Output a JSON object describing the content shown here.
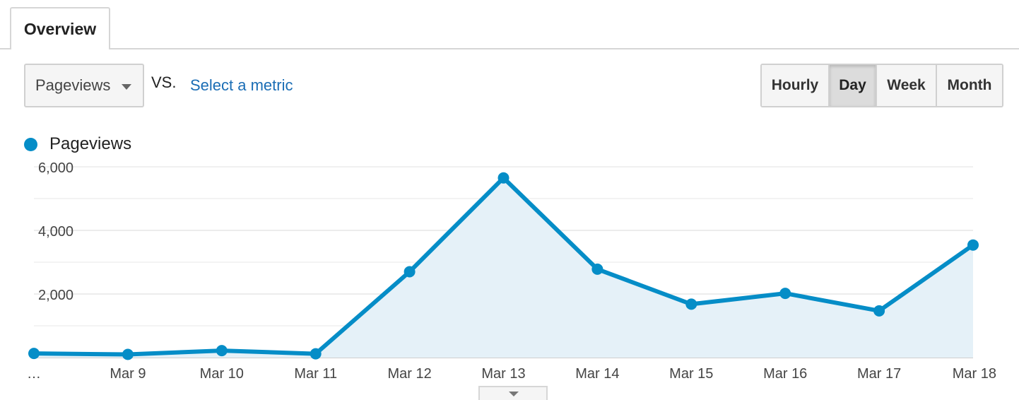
{
  "tabs": {
    "overview": "Overview"
  },
  "metric_selector": {
    "selected": "Pageviews",
    "vs": "VS.",
    "select_metric": "Select a metric"
  },
  "granularity": {
    "hourly": "Hourly",
    "day": "Day",
    "week": "Week",
    "month": "Month",
    "active": "Day"
  },
  "legend": {
    "series": "Pageviews",
    "color": "#058dc7"
  },
  "chart_data": {
    "type": "area",
    "x": [
      "…",
      "Mar 9",
      "Mar 10",
      "Mar 11",
      "Mar 12",
      "Mar 13",
      "Mar 14",
      "Mar 15",
      "Mar 16",
      "Mar 17",
      "Mar 18"
    ],
    "series": [
      {
        "name": "Pageviews",
        "color": "#058dc7",
        "values": [
          130,
          100,
          220,
          120,
          2700,
          5650,
          2780,
          1680,
          2020,
          1470,
          3540
        ]
      }
    ],
    "yticks": [
      "2,000",
      "4,000",
      "6,000"
    ],
    "ylim": [
      0,
      6000
    ],
    "grid": true,
    "legend": "top-left"
  }
}
